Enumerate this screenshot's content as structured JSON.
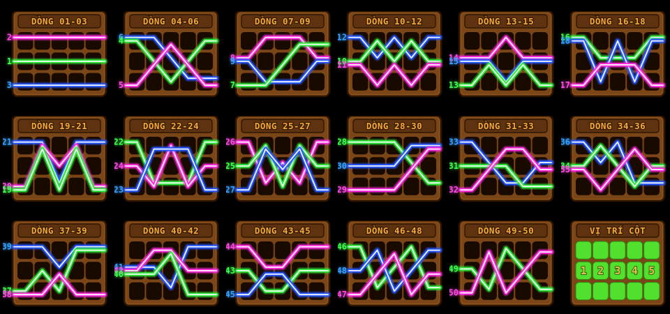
{
  "page": {
    "background": "#000000"
  },
  "colors": {
    "frame": "#7a4517",
    "frame_dark": "#2f1603",
    "frame_light": "#9c5f23",
    "title_bar": "#5f3310",
    "title_text": "#f2a93b",
    "title_outline": "#3a1c04",
    "cell_dark": "#190a00",
    "line_magenta": "#ff2bdf",
    "line_green": "#2fe83c",
    "line_blue": "#2457ff",
    "label_magenta": "#ff4ae4",
    "label_green": "#3dff4e",
    "label_blue": "#38a0ff",
    "col_cell_green": "#52e02e",
    "col_num_gold": "#e3c04a",
    "col_num_outline": "#2e6a12"
  },
  "panels": [
    {
      "title": "DÒNG 01-03",
      "lines": [
        {
          "num": "2",
          "color": "magenta",
          "pattern": [
            1,
            1,
            1,
            1,
            1
          ]
        },
        {
          "num": "1",
          "color": "green",
          "pattern": [
            2,
            2,
            2,
            2,
            2
          ]
        },
        {
          "num": "3",
          "color": "blue",
          "pattern": [
            3,
            3,
            3,
            3,
            3
          ]
        }
      ]
    },
    {
      "title": "DÒNG 04-06",
      "lines": [
        {
          "num": "6",
          "color": "blue",
          "pattern": [
            1,
            1,
            2,
            3,
            3
          ]
        },
        {
          "num": "4",
          "color": "green",
          "pattern": [
            1,
            2,
            3,
            2,
            1
          ]
        },
        {
          "num": "5",
          "color": "magenta",
          "pattern": [
            3,
            2,
            1,
            2,
            3
          ]
        }
      ]
    },
    {
      "title": "DÒNG 07-09",
      "lines": [
        {
          "num": "8",
          "color": "magenta",
          "pattern": [
            2,
            1,
            1,
            1,
            2
          ]
        },
        {
          "num": "9",
          "color": "blue",
          "pattern": [
            2,
            3,
            3,
            3,
            2
          ]
        },
        {
          "num": "7",
          "color": "green",
          "pattern": [
            3,
            3,
            2,
            1,
            1
          ]
        }
      ]
    },
    {
      "title": "DÒNG 10-12",
      "lines": [
        {
          "num": "12",
          "color": "blue",
          "pattern": [
            1,
            2,
            1,
            2,
            1
          ]
        },
        {
          "num": "10",
          "color": "green",
          "pattern": [
            2,
            1,
            2,
            1,
            2
          ]
        },
        {
          "num": "11",
          "color": "magenta",
          "pattern": [
            2,
            3,
            2,
            3,
            2
          ]
        }
      ]
    },
    {
      "title": "DÒNG 13-15",
      "lines": [
        {
          "num": "14",
          "color": "magenta",
          "pattern": [
            2,
            2,
            1,
            2,
            2
          ]
        },
        {
          "num": "15",
          "color": "blue",
          "pattern": [
            2,
            2,
            3,
            2,
            2
          ]
        },
        {
          "num": "13",
          "color": "green",
          "pattern": [
            3,
            2,
            3,
            2,
            3
          ]
        }
      ]
    },
    {
      "title": "DÒNG 16-18",
      "lines": [
        {
          "num": "16",
          "color": "green",
          "pattern": [
            1,
            2,
            2,
            2,
            1
          ]
        },
        {
          "num": "18",
          "color": "blue",
          "pattern": [
            1,
            3,
            1,
            3,
            1
          ]
        },
        {
          "num": "17",
          "color": "magenta",
          "pattern": [
            3,
            2,
            2,
            2,
            3
          ]
        }
      ]
    },
    {
      "title": "DÒNG 19-21",
      "lines": [
        {
          "num": "21",
          "color": "blue",
          "pattern": [
            1,
            1,
            3,
            1,
            1
          ]
        },
        {
          "num": "20",
          "color": "magenta",
          "pattern": [
            3,
            1,
            2,
            1,
            3
          ]
        },
        {
          "num": "19",
          "color": "green",
          "pattern": [
            3,
            1,
            3,
            1,
            3
          ]
        }
      ]
    },
    {
      "title": "DÒNG 22-24",
      "lines": [
        {
          "num": "22",
          "color": "green",
          "pattern": [
            1,
            3,
            3,
            3,
            1
          ]
        },
        {
          "num": "24",
          "color": "magenta",
          "pattern": [
            2,
            3,
            1,
            3,
            2
          ]
        },
        {
          "num": "23",
          "color": "blue",
          "pattern": [
            3,
            1,
            1,
            1,
            3
          ]
        }
      ]
    },
    {
      "title": "DÒNG 25-27",
      "lines": [
        {
          "num": "26",
          "color": "magenta",
          "pattern": [
            1,
            3,
            2,
            3,
            1
          ]
        },
        {
          "num": "25",
          "color": "green",
          "pattern": [
            2,
            1,
            3,
            1,
            2
          ]
        },
        {
          "num": "27",
          "color": "blue",
          "pattern": [
            3,
            1,
            2,
            1,
            3
          ]
        }
      ]
    },
    {
      "title": "DÒNG 28-30",
      "lines": [
        {
          "num": "28",
          "color": "green",
          "pattern": [
            1,
            1,
            1,
            2,
            3
          ]
        },
        {
          "num": "30",
          "color": "blue",
          "pattern": [
            2,
            2,
            2,
            1,
            1
          ]
        },
        {
          "num": "29",
          "color": "magenta",
          "pattern": [
            3,
            3,
            3,
            2,
            1
          ]
        }
      ]
    },
    {
      "title": "DÒNG 31-33",
      "lines": [
        {
          "num": "33",
          "color": "blue",
          "pattern": [
            1,
            2,
            3,
            3,
            2
          ]
        },
        {
          "num": "31",
          "color": "green",
          "pattern": [
            2,
            2,
            2,
            3,
            3
          ]
        },
        {
          "num": "32",
          "color": "magenta",
          "pattern": [
            3,
            2,
            1,
            1,
            2
          ]
        }
      ]
    },
    {
      "title": "DÒNG 34-36",
      "lines": [
        {
          "num": "36",
          "color": "blue",
          "pattern": [
            1,
            2,
            1,
            3,
            3
          ]
        },
        {
          "num": "34",
          "color": "green",
          "pattern": [
            2,
            1,
            2,
            3,
            2
          ]
        },
        {
          "num": "35",
          "color": "magenta",
          "pattern": [
            2,
            3,
            2,
            1,
            2
          ]
        }
      ]
    },
    {
      "title": "DÒNG 37-39",
      "lines": [
        {
          "num": "39",
          "color": "blue",
          "pattern": [
            1,
            1,
            2,
            1,
            1
          ]
        },
        {
          "num": "37",
          "color": "green",
          "pattern": [
            3,
            2,
            3,
            1,
            1
          ]
        },
        {
          "num": "38",
          "color": "magenta",
          "pattern": [
            3,
            3,
            2,
            3,
            3
          ]
        }
      ]
    },
    {
      "title": "DÒNG 40-42",
      "lines": [
        {
          "num": "41",
          "color": "blue",
          "pattern": [
            2,
            2,
            3,
            1,
            1
          ]
        },
        {
          "num": "42",
          "color": "magenta",
          "pattern": [
            2,
            1,
            1,
            2,
            2
          ]
        },
        {
          "num": "40",
          "color": "green",
          "pattern": [
            2,
            2,
            1,
            3,
            3
          ]
        }
      ]
    },
    {
      "title": "DÒNG 43-45",
      "lines": [
        {
          "num": "44",
          "color": "magenta",
          "pattern": [
            1,
            2,
            2,
            1,
            1
          ]
        },
        {
          "num": "43",
          "color": "green",
          "pattern": [
            2,
            3,
            3,
            2,
            2
          ]
        },
        {
          "num": "45",
          "color": "blue",
          "pattern": [
            3,
            2,
            2,
            3,
            3
          ]
        }
      ]
    },
    {
      "title": "DÒNG 46-48",
      "lines": [
        {
          "num": "46",
          "color": "green",
          "pattern": [
            1,
            3,
            2,
            1,
            3
          ]
        },
        {
          "num": "48",
          "color": "blue",
          "pattern": [
            2,
            1,
            3,
            2,
            1
          ]
        },
        {
          "num": "47",
          "color": "magenta",
          "pattern": [
            3,
            2,
            1,
            3,
            2
          ]
        }
      ]
    },
    {
      "title": "DÒNG 49-50",
      "lines": [
        {
          "num": "49",
          "color": "green",
          "pattern": [
            2,
            3,
            1,
            2,
            3
          ]
        },
        {
          "num": "50",
          "color": "magenta",
          "pattern": [
            3,
            1,
            3,
            2,
            1
          ]
        }
      ]
    }
  ],
  "column_panel": {
    "title": "VỊ TRÍ CỘT",
    "cells": [
      "1",
      "2",
      "3",
      "4",
      "5"
    ]
  }
}
